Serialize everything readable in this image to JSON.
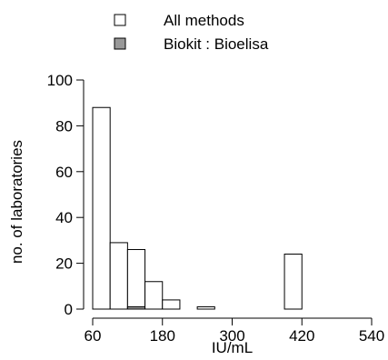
{
  "chart_data": {
    "type": "bar",
    "title": "",
    "xlabel": "IU/mL",
    "ylabel": "no. of laboratories",
    "xlim": [
      60,
      540
    ],
    "ylim": [
      0,
      100
    ],
    "x_ticks": [
      "60",
      "180",
      "300",
      "420",
      "540"
    ],
    "y_ticks": [
      "0",
      "20",
      "40",
      "60",
      "80",
      "100"
    ],
    "bin_width": 30,
    "legend_position": "top-center",
    "series": [
      {
        "name": "All methods",
        "color": "#ffffff",
        "bins": [
          {
            "x0": 60,
            "x1": 90,
            "value": 88
          },
          {
            "x0": 90,
            "x1": 120,
            "value": 29
          },
          {
            "x0": 120,
            "x1": 150,
            "value": 26
          },
          {
            "x0": 150,
            "x1": 180,
            "value": 12
          },
          {
            "x0": 180,
            "x1": 210,
            "value": 4
          },
          {
            "x0": 210,
            "x1": 240,
            "value": 0
          },
          {
            "x0": 240,
            "x1": 270,
            "value": 1
          },
          {
            "x0": 270,
            "x1": 300,
            "value": 0
          },
          {
            "x0": 300,
            "x1": 330,
            "value": 0
          },
          {
            "x0": 330,
            "x1": 360,
            "value": 0
          },
          {
            "x0": 360,
            "x1": 390,
            "value": 0
          },
          {
            "x0": 390,
            "x1": 420,
            "value": 24
          },
          {
            "x0": 420,
            "x1": 450,
            "value": 0
          }
        ]
      },
      {
        "name": "Biokit : Bioelisa",
        "color": "#999999",
        "bins": [
          {
            "x0": 120,
            "x1": 150,
            "value": 1
          }
        ]
      }
    ]
  }
}
